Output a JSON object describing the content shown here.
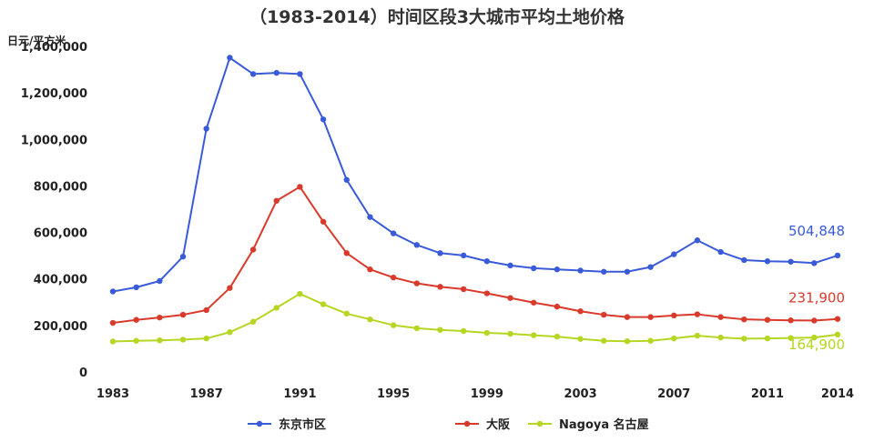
{
  "chart_data": {
    "type": "line",
    "title": "（1983-2014）时间区段3大城市平均土地价格",
    "ylabel": "日元/平方米",
    "xlabel": "",
    "ylim": [
      0,
      1400000
    ],
    "yticks": [
      "0",
      "200,000",
      "400,000",
      "600,000",
      "800,000",
      "1,000,000",
      "1,200,000",
      "1,400,000"
    ],
    "xticks": [
      "1983",
      "1987",
      "1991",
      "1995",
      "1999",
      "2003",
      "2007",
      "2011",
      "2014"
    ],
    "x": [
      1983,
      1984,
      1985,
      1986,
      1987,
      1988,
      1989,
      1990,
      1991,
      1992,
      1993,
      1994,
      1995,
      1996,
      1997,
      1998,
      1999,
      2000,
      2001,
      2002,
      2003,
      2004,
      2005,
      2006,
      2007,
      2008,
      2009,
      2010,
      2011,
      2012,
      2013,
      2014
    ],
    "grid": false,
    "legend_position": "bottom",
    "series": [
      {
        "name": "东京市区",
        "color": "#3a5bd9",
        "values": [
          350000,
          368000,
          395000,
          500000,
          1050000,
          1355000,
          1285000,
          1290000,
          1285000,
          1090000,
          830000,
          670000,
          600000,
          550000,
          515000,
          505000,
          480000,
          462000,
          450000,
          445000,
          440000,
          435000,
          435000,
          455000,
          510000,
          570000,
          520000,
          485000,
          480000,
          478000,
          472000,
          504848
        ],
        "end_label": "504,848"
      },
      {
        "name": "大阪",
        "color": "#d93a2b",
        "values": [
          215000,
          228000,
          238000,
          250000,
          270000,
          365000,
          530000,
          740000,
          800000,
          650000,
          515000,
          445000,
          410000,
          385000,
          370000,
          360000,
          342000,
          322000,
          302000,
          285000,
          265000,
          250000,
          240000,
          240000,
          247000,
          252000,
          240000,
          230000,
          228000,
          226000,
          225000,
          231900
        ],
        "end_label": "231,900"
      },
      {
        "name": "Nagoya 名古屋",
        "color": "#b5d622",
        "values": [
          135000,
          138000,
          140000,
          143000,
          148000,
          175000,
          220000,
          280000,
          340000,
          295000,
          255000,
          230000,
          205000,
          192000,
          185000,
          180000,
          172000,
          168000,
          162000,
          156000,
          146000,
          138000,
          136000,
          138000,
          148000,
          160000,
          152000,
          147000,
          148000,
          150000,
          152000,
          164900
        ],
        "end_label": "164,900"
      }
    ]
  }
}
